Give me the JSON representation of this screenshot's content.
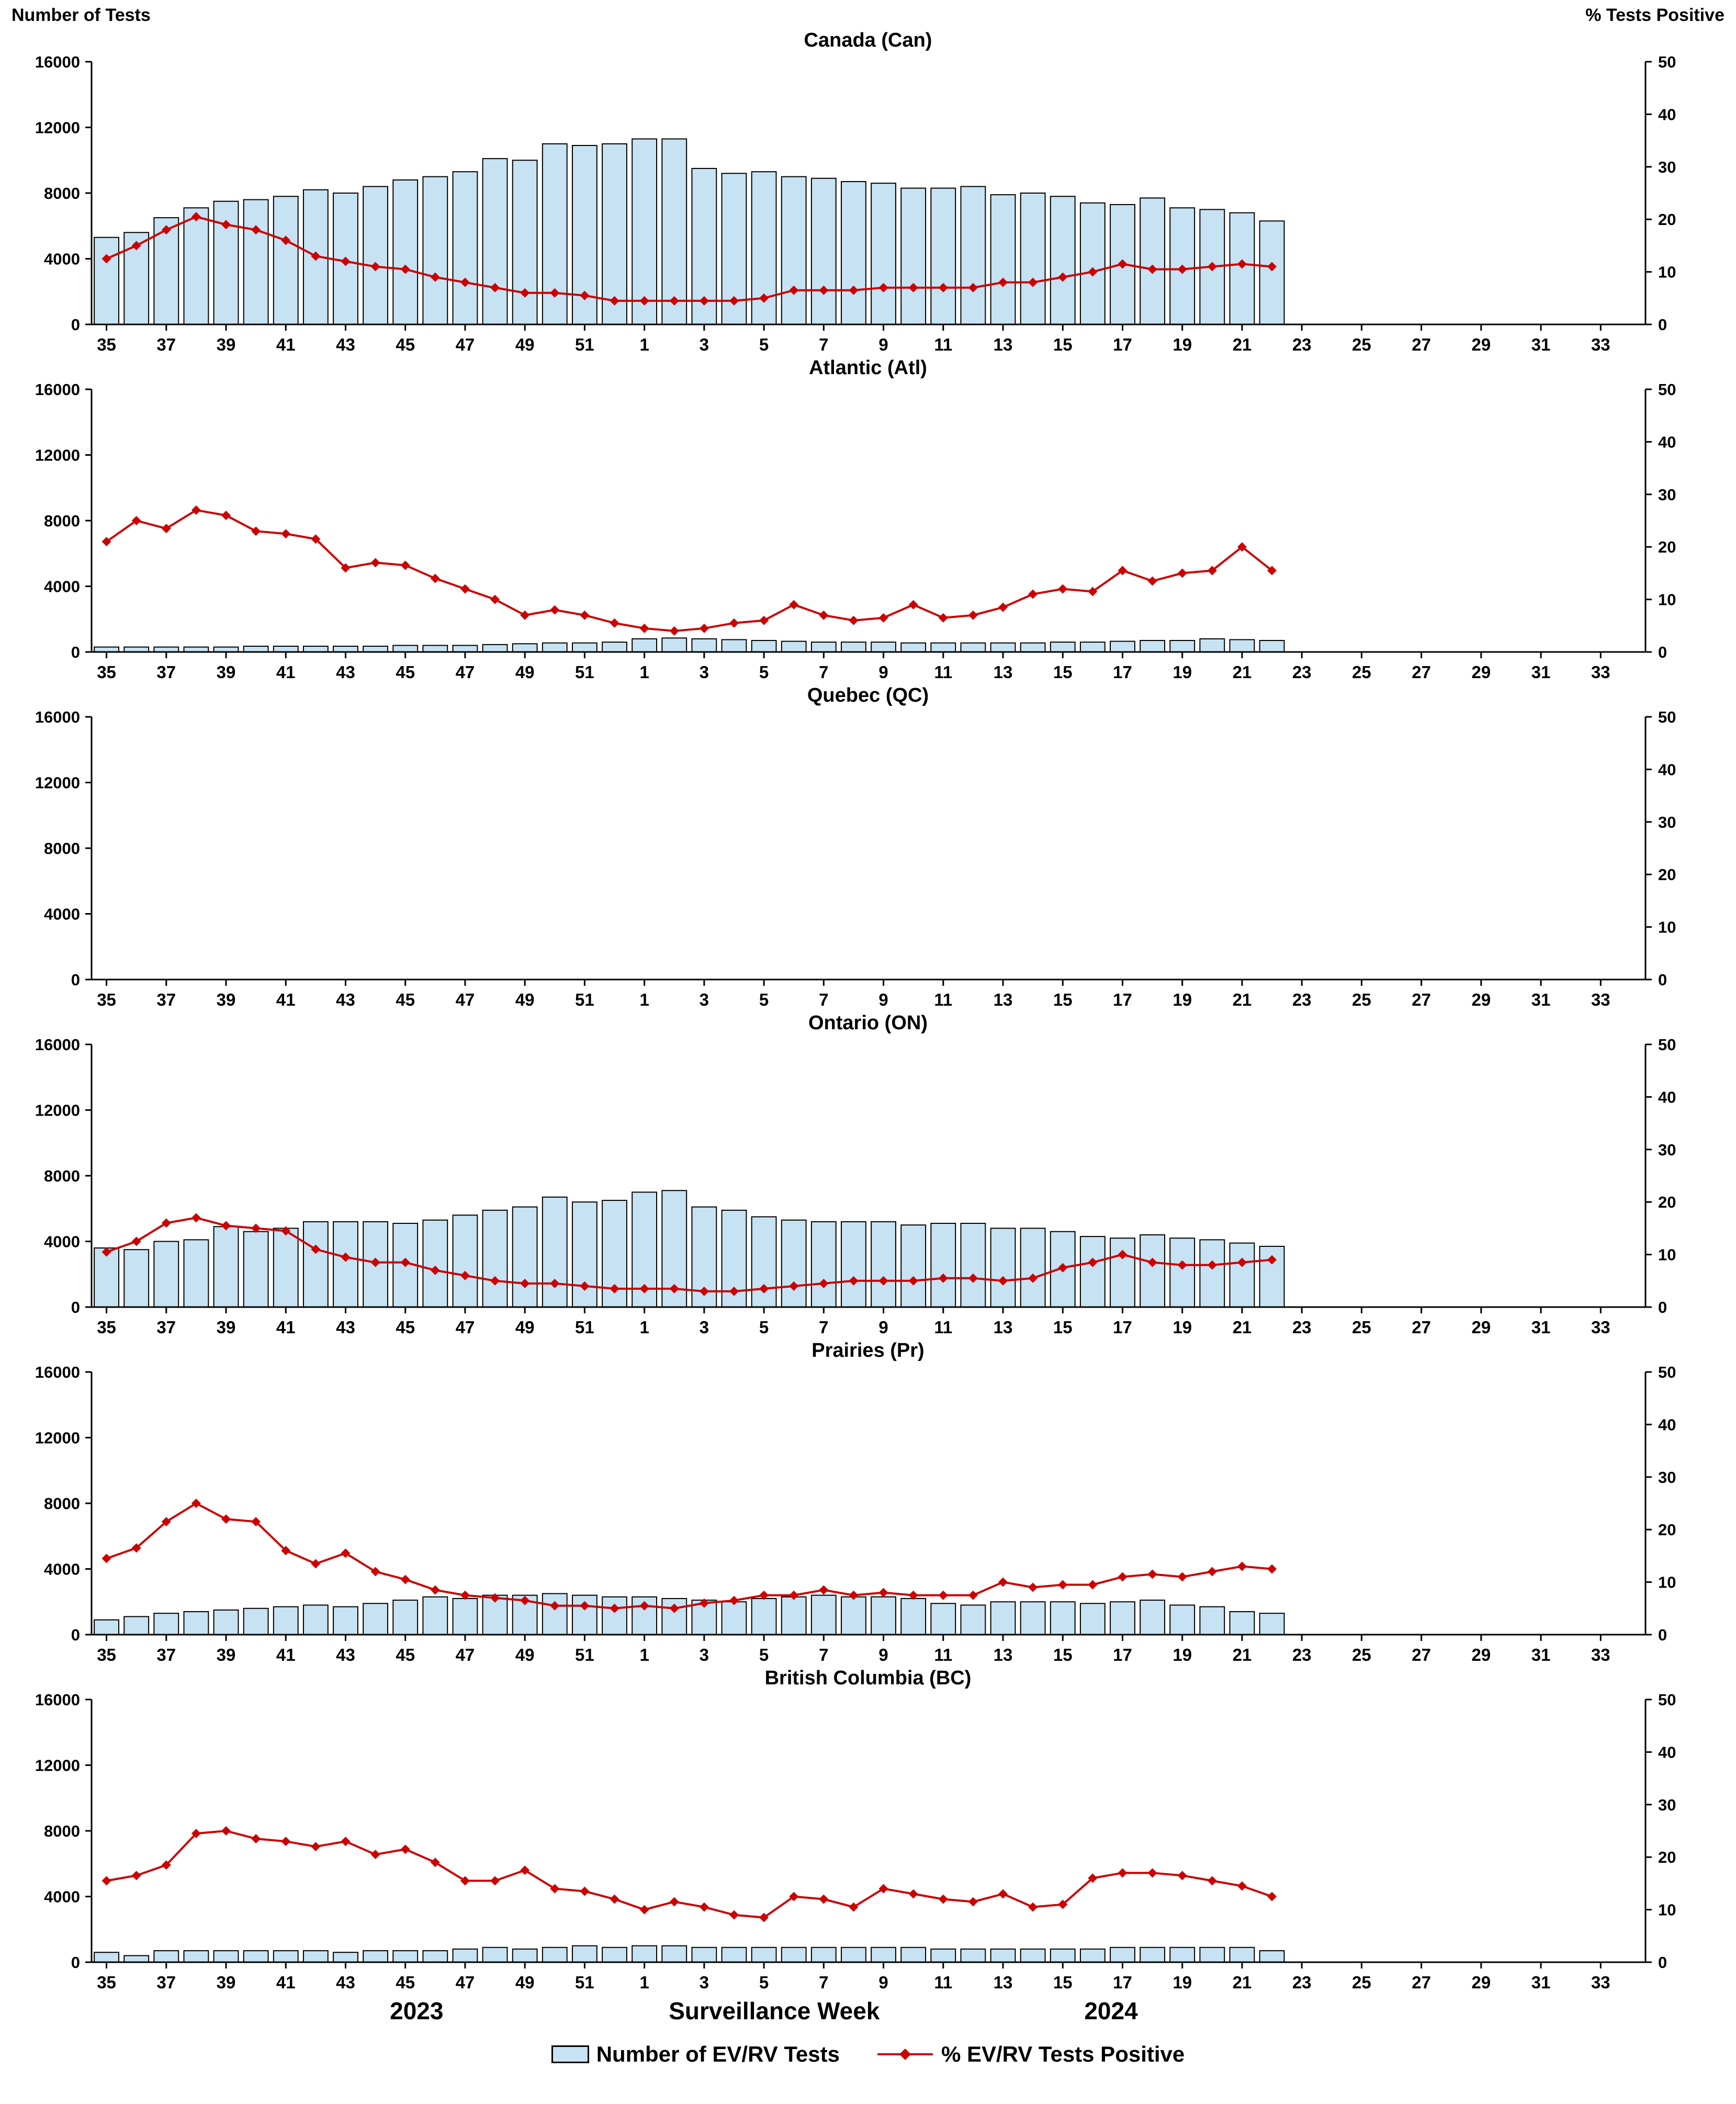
{
  "header": {
    "left_axis_title": "Number of Tests",
    "right_axis_title": "% Tests Positive"
  },
  "footer": {
    "year_left": "2023",
    "x_axis_title": "Surveillance Week",
    "year_right": "2024"
  },
  "legend": {
    "bars_label": "Number of EV/RV Tests",
    "line_label": "% EV/RV Tests Positive"
  },
  "chart_data": {
    "type": "bar-line-combo-small-multiples",
    "x_label": "Surveillance Week",
    "x_years": [
      "2023",
      "2024"
    ],
    "axis_weeks": [
      35,
      36,
      37,
      38,
      39,
      40,
      41,
      42,
      43,
      44,
      45,
      46,
      47,
      48,
      49,
      50,
      51,
      52,
      1,
      2,
      3,
      4,
      5,
      6,
      7,
      8,
      9,
      10,
      11,
      12,
      13,
      14,
      15,
      16,
      17,
      18,
      19,
      20,
      21,
      22,
      23,
      24,
      25,
      26,
      27,
      28,
      29,
      30,
      31,
      32,
      33,
      34
    ],
    "data_weeks": [
      35,
      36,
      37,
      38,
      39,
      40,
      41,
      42,
      43,
      44,
      45,
      46,
      47,
      48,
      49,
      50,
      51,
      52,
      1,
      2,
      3,
      4,
      5,
      6,
      7,
      8,
      9,
      10,
      11,
      12,
      13,
      14,
      15,
      16,
      17,
      18,
      19,
      20,
      21,
      22
    ],
    "y_left": {
      "label": "Number of Tests",
      "min": 0,
      "max": 16000,
      "step": 4000
    },
    "y_right": {
      "label": "% Tests Positive",
      "min": 0,
      "max": 50,
      "step": 10
    },
    "colors": {
      "bar_fill": "#C6E2F3",
      "bar_stroke": "#000000",
      "line": "#CC0000"
    },
    "series_labels": {
      "bars": "Number of EV/RV Tests",
      "line": "% EV/RV Tests Positive"
    },
    "panels": [
      {
        "id": "canada",
        "title": "Canada (Can)",
        "tests": [
          5300,
          5600,
          6500,
          7100,
          7500,
          7600,
          7800,
          8200,
          8000,
          8400,
          8800,
          9000,
          9300,
          10100,
          10000,
          11000,
          10900,
          11000,
          11300,
          11300,
          9500,
          9200,
          9300,
          9000,
          8900,
          8700,
          8600,
          8300,
          8300,
          8400,
          7900,
          8000,
          7800,
          7400,
          7300,
          7700,
          7100,
          7000,
          6800,
          6300
        ],
        "pct_positive": [
          12.5,
          15,
          18,
          20.5,
          19,
          18,
          16,
          13,
          12,
          11,
          10.5,
          9,
          8,
          7,
          6,
          6,
          5.5,
          4.5,
          4.5,
          4.5,
          4.5,
          4.5,
          5,
          6.5,
          6.5,
          6.5,
          7,
          7,
          7,
          7,
          8,
          8,
          9,
          10,
          11.5,
          10.5,
          10.5,
          11,
          11.5,
          11
        ]
      },
      {
        "id": "atlantic",
        "title": "Atlantic (Atl)",
        "tests": [
          300,
          300,
          300,
          300,
          300,
          350,
          350,
          350,
          350,
          350,
          400,
          400,
          400,
          450,
          500,
          550,
          550,
          600,
          800,
          850,
          800,
          750,
          700,
          650,
          600,
          600,
          600,
          550,
          550,
          550,
          550,
          550,
          600,
          600,
          650,
          700,
          700,
          800,
          750,
          700
        ],
        "pct_positive": [
          21,
          25,
          23.5,
          27,
          26,
          23,
          22.5,
          21.5,
          16,
          17,
          16.5,
          14,
          12,
          10,
          7,
          8,
          7,
          5.5,
          4.5,
          4,
          4.5,
          5.5,
          6,
          9,
          7,
          6,
          6.5,
          9,
          6.5,
          7,
          8.5,
          11,
          12,
          11.5,
          15.5,
          13.5,
          15,
          15.5,
          20,
          15.5
        ]
      },
      {
        "id": "quebec",
        "title": "Quebec (QC)",
        "tests": [],
        "pct_positive": []
      },
      {
        "id": "ontario",
        "title": "Ontario (ON)",
        "tests": [
          3600,
          3500,
          4000,
          4100,
          4900,
          4600,
          4800,
          5200,
          5200,
          5200,
          5100,
          5300,
          5600,
          5900,
          6100,
          6700,
          6400,
          6500,
          7000,
          7100,
          6100,
          5900,
          5500,
          5300,
          5200,
          5200,
          5200,
          5000,
          5100,
          5100,
          4800,
          4800,
          4600,
          4300,
          4200,
          4400,
          4200,
          4100,
          3900,
          3700
        ],
        "pct_positive": [
          10.5,
          12.5,
          16,
          17,
          15.5,
          15,
          14.5,
          11,
          9.5,
          8.5,
          8.5,
          7,
          6,
          5,
          4.5,
          4.5,
          4,
          3.5,
          3.5,
          3.5,
          3,
          3,
          3.5,
          4,
          4.5,
          5,
          5,
          5,
          5.5,
          5.5,
          5,
          5.5,
          7.5,
          8.5,
          10,
          8.5,
          8,
          8,
          8.5,
          9
        ]
      },
      {
        "id": "prairies",
        "title": "Prairies (Pr)",
        "tests": [
          900,
          1100,
          1300,
          1400,
          1500,
          1600,
          1700,
          1800,
          1700,
          1900,
          2100,
          2300,
          2200,
          2400,
          2400,
          2500,
          2400,
          2300,
          2300,
          2200,
          2100,
          2000,
          2200,
          2300,
          2400,
          2300,
          2300,
          2200,
          1900,
          1800,
          2000,
          2000,
          2000,
          1900,
          2000,
          2100,
          1800,
          1700,
          1400,
          1300
        ],
        "pct_positive": [
          14.5,
          16.5,
          21.5,
          25,
          22,
          21.5,
          16,
          13.5,
          15.5,
          12,
          10.5,
          8.5,
          7.5,
          7,
          6.5,
          5.5,
          5.5,
          5,
          5.5,
          5,
          6,
          6.5,
          7.5,
          7.5,
          8.5,
          7.5,
          8,
          7.5,
          7.5,
          7.5,
          10,
          9,
          9.5,
          9.5,
          11,
          11.5,
          11,
          12,
          13,
          12.5
        ]
      },
      {
        "id": "british-columbia",
        "title": "British Columbia (BC)",
        "tests": [
          600,
          400,
          700,
          700,
          700,
          700,
          700,
          700,
          600,
          700,
          700,
          700,
          800,
          900,
          800,
          900,
          1000,
          900,
          1000,
          1000,
          900,
          900,
          900,
          900,
          900,
          900,
          900,
          900,
          800,
          800,
          800,
          800,
          800,
          800,
          900,
          900,
          900,
          900,
          900,
          700
        ],
        "pct_positive": [
          15.5,
          16.5,
          18.5,
          24.5,
          25,
          23.5,
          23,
          22,
          23,
          20.5,
          21.5,
          19,
          15.5,
          15.5,
          17.5,
          14,
          13.5,
          12,
          10,
          11.5,
          10.5,
          9,
          8.5,
          12.5,
          12,
          10.5,
          14,
          13,
          12,
          11.5,
          13,
          10.5,
          11,
          16,
          17,
          17,
          16.5,
          15.5,
          14.5,
          12.5
        ]
      }
    ]
  }
}
